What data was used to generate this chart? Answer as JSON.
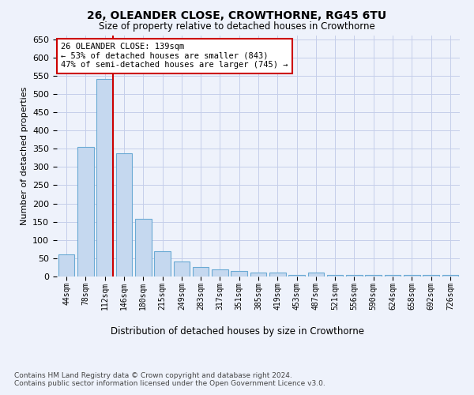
{
  "title": "26, OLEANDER CLOSE, CROWTHORNE, RG45 6TU",
  "subtitle": "Size of property relative to detached houses in Crowthorne",
  "xlabel_bottom": "Distribution of detached houses by size in Crowthorne",
  "ylabel": "Number of detached properties",
  "bin_labels": [
    "44sqm",
    "78sqm",
    "112sqm",
    "146sqm",
    "180sqm",
    "215sqm",
    "249sqm",
    "283sqm",
    "317sqm",
    "351sqm",
    "385sqm",
    "419sqm",
    "453sqm",
    "487sqm",
    "521sqm",
    "556sqm",
    "590sqm",
    "624sqm",
    "658sqm",
    "692sqm",
    "726sqm"
  ],
  "bar_values": [
    60,
    355,
    540,
    338,
    157,
    70,
    42,
    25,
    20,
    16,
    10,
    10,
    4,
    10,
    4,
    4,
    4,
    5,
    4,
    4,
    5
  ],
  "bar_color": "#c5d8ef",
  "bar_edge_color": "#6aaad4",
  "vline_color": "#cc0000",
  "annotation_text": "26 OLEANDER CLOSE: 139sqm\n← 53% of detached houses are smaller (843)\n47% of semi-detached houses are larger (745) →",
  "annotation_box_color": "white",
  "annotation_box_edge": "#cc0000",
  "ylim": [
    0,
    660
  ],
  "yticks": [
    0,
    50,
    100,
    150,
    200,
    250,
    300,
    350,
    400,
    450,
    500,
    550,
    600,
    650
  ],
  "footnote": "Contains HM Land Registry data © Crown copyright and database right 2024.\nContains public sector information licensed under the Open Government Licence v3.0.",
  "background_color": "#eef2fb",
  "plot_bg_color": "#eef2fb",
  "grid_color": "#c5ceea"
}
